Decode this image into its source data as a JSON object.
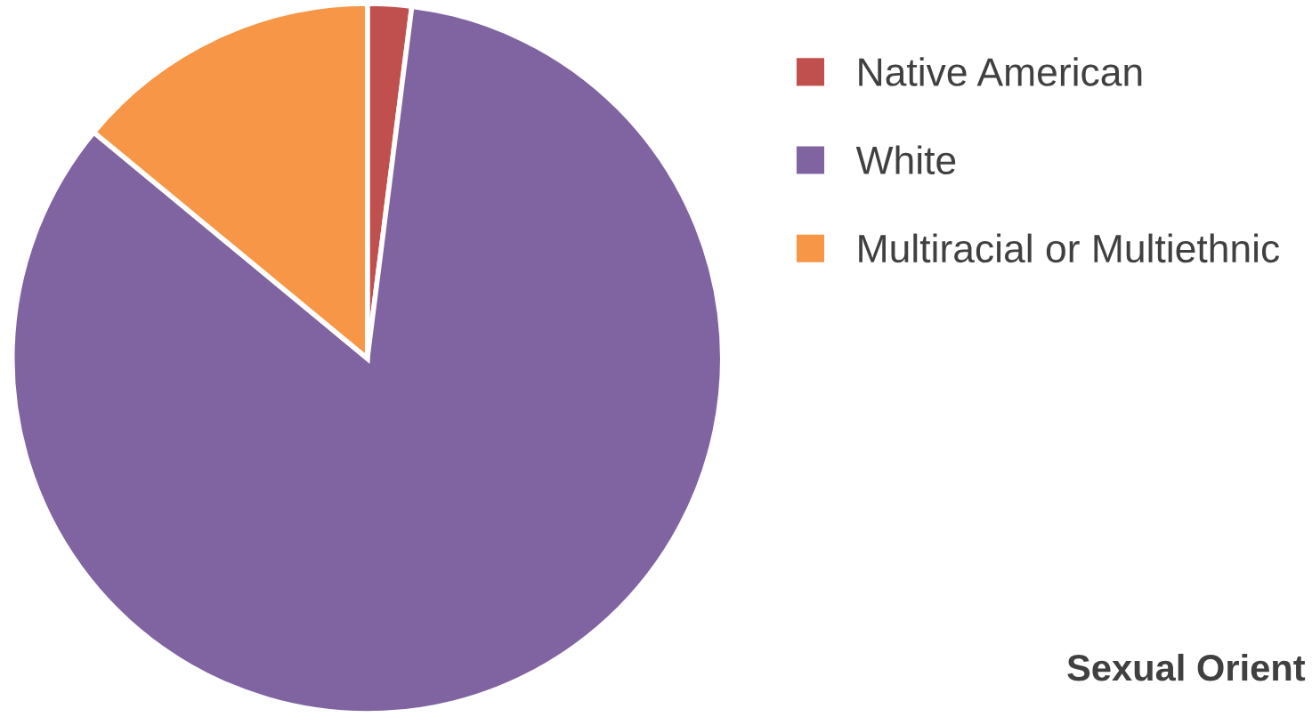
{
  "chart_data": {
    "type": "pie",
    "categories": [
      "Native American",
      "White",
      "Multiracial or Multiethnic"
    ],
    "values": [
      2,
      84,
      14
    ],
    "colors": [
      "#c0504d",
      "#8064a2",
      "#f79646"
    ],
    "legend": "right",
    "annotations": [
      "Sexual Orient"
    ]
  }
}
